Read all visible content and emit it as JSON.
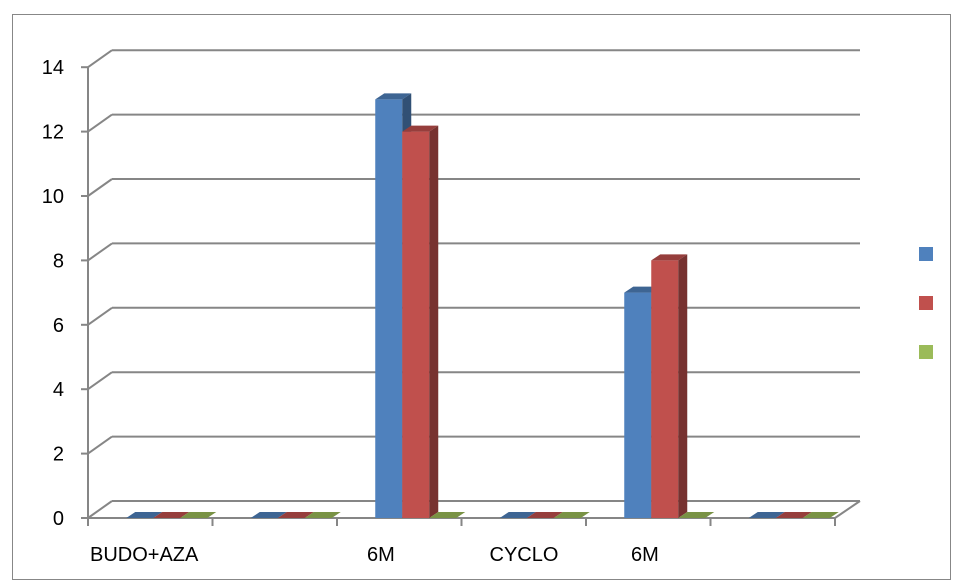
{
  "chart_data": {
    "type": "bar",
    "style": "3d-clustered-column",
    "categories": [
      "BUDO+AZA",
      "",
      "6M",
      "CYCLO",
      "6M",
      ""
    ],
    "series": [
      {
        "values": [
          0,
          0,
          13,
          0,
          7,
          0
        ],
        "color": "#4F81BD"
      },
      {
        "values": [
          0,
          0,
          12,
          0,
          8,
          0
        ],
        "color": "#C0504D"
      },
      {
        "values": [
          0,
          0,
          0,
          0,
          0,
          0
        ],
        "color": "#9BBB59"
      }
    ],
    "ylim": [
      0,
      14
    ],
    "yticks": [
      0,
      2,
      4,
      6,
      8,
      10,
      12,
      14
    ],
    "grid": true,
    "legend": "right",
    "legend_labels_visible": false
  }
}
